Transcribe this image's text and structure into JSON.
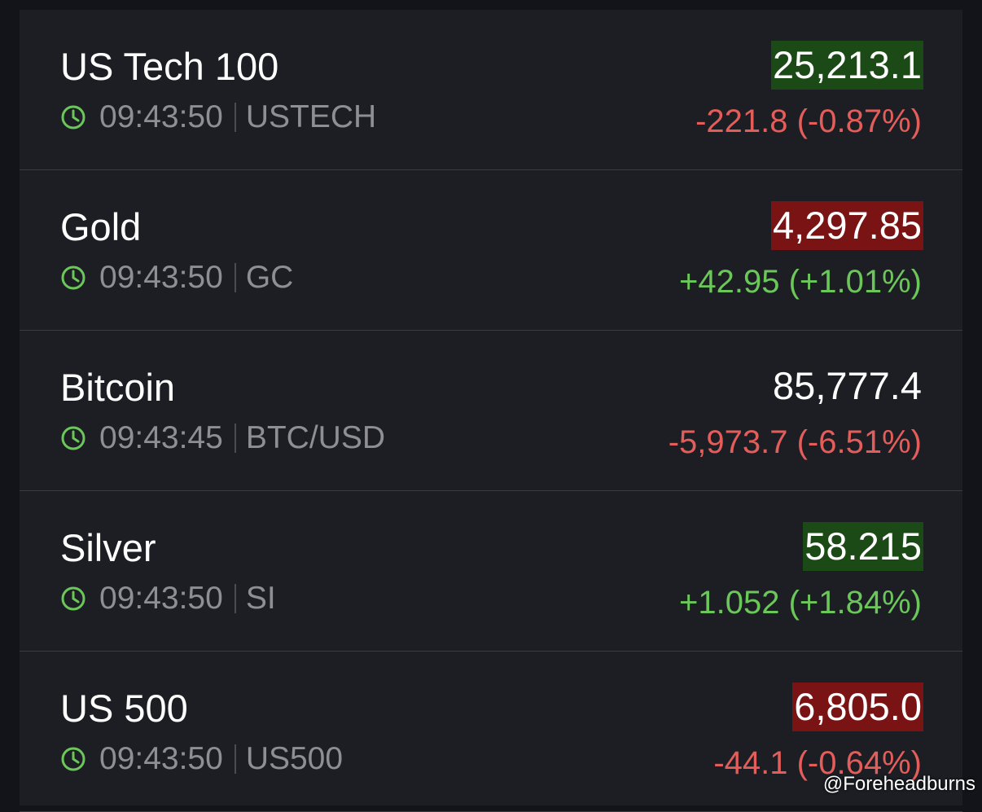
{
  "rows": [
    {
      "name": "US Tech 100",
      "time": "09:43:50",
      "symbol": "USTECH",
      "price": "25,213.1",
      "price_highlight": "#1c4a17",
      "change": "-221.8 (-0.87%)",
      "change_color": "#e35d5a"
    },
    {
      "name": "Gold",
      "time": "09:43:50",
      "symbol": "GC",
      "price": "4,297.85",
      "price_highlight": "#7a1414",
      "change": "+42.95 (+1.01%)",
      "change_color": "#6cc75a"
    },
    {
      "name": "Bitcoin",
      "time": "09:43:45",
      "symbol": "BTC/USD",
      "price": "85,777.4",
      "change": "-5,973.7 (-6.51%)",
      "change_color": "#e35d5a"
    },
    {
      "name": "Silver",
      "time": "09:43:50",
      "symbol": "SI",
      "price": "58.215",
      "price_highlight": "#1c4a17",
      "change": "+1.052 (+1.84%)",
      "change_color": "#6cc75a"
    },
    {
      "name": "US 500",
      "time": "09:43:50",
      "symbol": "US500",
      "price": "6,805.0",
      "price_highlight": "#7a1414",
      "change": "-44.1 (-0.64%)",
      "change_color": "#e35d5a"
    }
  ],
  "watermark": "@Foreheadburns"
}
